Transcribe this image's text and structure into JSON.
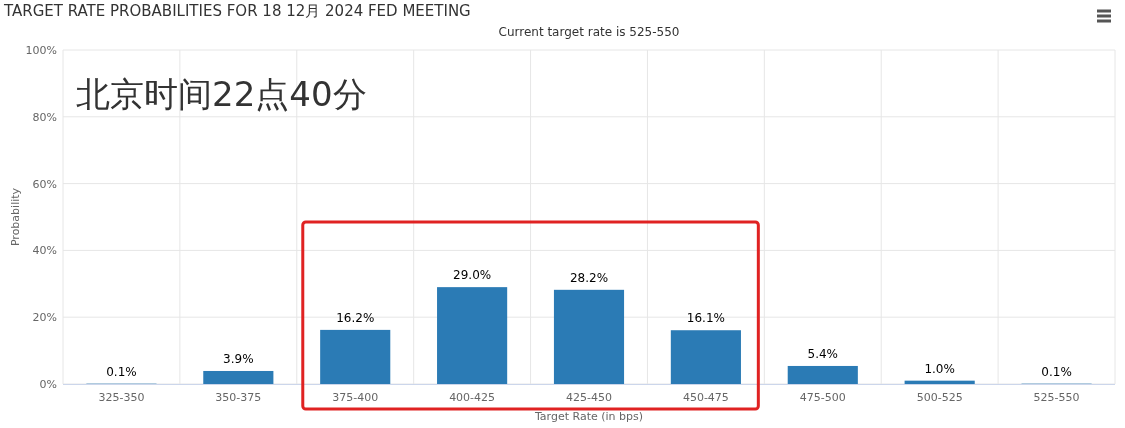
{
  "chart_data": {
    "type": "bar",
    "title": "TARGET RATE PROBABILITIES FOR 18 12月 2024 FED MEETING",
    "subtitle": "Current target rate is 525-550",
    "xlabel": "Target Rate (in bps)",
    "ylabel": "Probability",
    "annotations": [
      "北京时间22点40分"
    ],
    "categories": [
      "325-350",
      "350-375",
      "375-400",
      "400-425",
      "425-450",
      "450-475",
      "475-500",
      "500-525",
      "525-550"
    ],
    "values": [
      0.1,
      3.9,
      16.2,
      29.0,
      28.2,
      16.1,
      5.4,
      1.0,
      0.1
    ],
    "value_labels": [
      "0.1%",
      "3.9%",
      "16.2%",
      "29.0%",
      "28.2%",
      "16.1%",
      "5.4%",
      "1.0%",
      "0.1%"
    ],
    "color": "#2b7bb5",
    "ylim": [
      0,
      100
    ],
    "yticks": [
      {
        "value": 0,
        "label": "0%"
      },
      {
        "value": 20,
        "label": "20%"
      },
      {
        "value": 40,
        "label": "40%"
      },
      {
        "value": 60,
        "label": "60%"
      },
      {
        "value": 80,
        "label": "80%"
      },
      {
        "value": 100,
        "label": "100%"
      }
    ],
    "grid": true
  }
}
